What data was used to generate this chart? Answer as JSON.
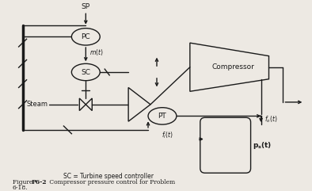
{
  "bg_color": "#ede9e3",
  "line_color": "#1a1a1a",
  "title_bold": "Figure P6-2",
  "title_rest": " Compressor pressure control for Problem\n6-18.",
  "subtitle": "SC = Turbine speed controller"
}
